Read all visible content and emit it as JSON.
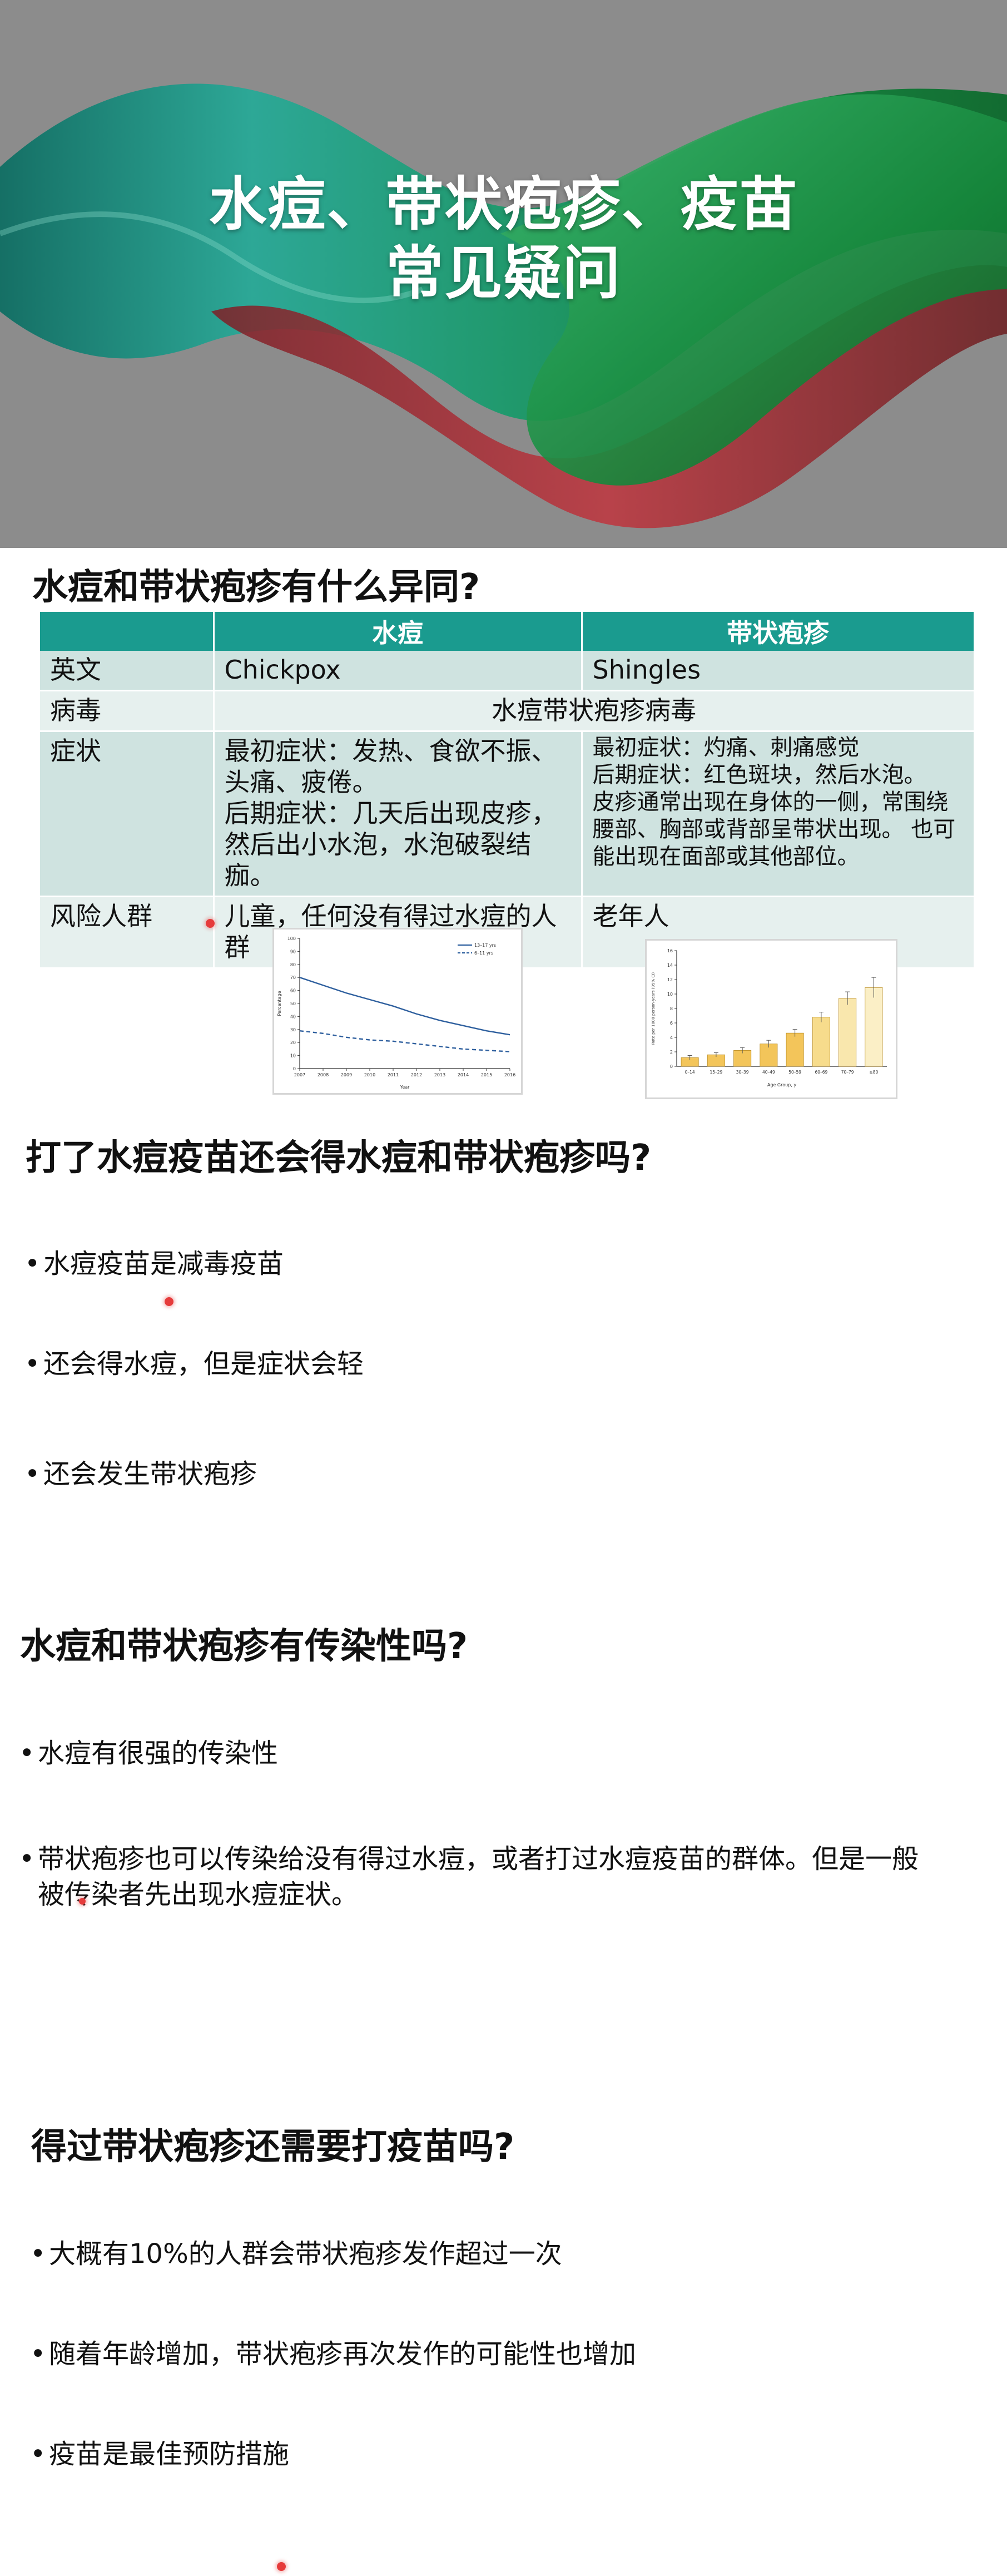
{
  "banner": {
    "title_line1": "水痘、带状疱疹、疫苗",
    "title_line2": "常见疑问"
  },
  "section1": {
    "heading": "水痘和带状疱疹有什么异同?",
    "table": {
      "headers": [
        "",
        "水痘",
        "带状疱疹"
      ],
      "rows": [
        {
          "label": "英文",
          "chickenpox": "Chickpox",
          "shingles": "Shingles"
        },
        {
          "label": "病毒",
          "merged": "水痘带状疱疹病毒"
        },
        {
          "label": "症状",
          "chickenpox": "最初症状：发热、食欲不振、\n头痛、疲倦。\n后期症状：几天后出现皮疹，\n然后出小水泡，水泡破裂结痂。",
          "shingles": "最初症状：灼痛、刺痛感觉\n后期症状：红色斑块，然后水泡。\n皮疹通常出现在身体的一侧，常围绕\n腰部、胸部或背部呈带状出现。 也可\n能出现在面部或其他部位。"
        },
        {
          "label": "风险人群",
          "chickenpox": "儿童，任何没有得过水痘的人\n群",
          "shingles": "老年人"
        }
      ]
    }
  },
  "section2": {
    "heading": "打了水痘疫苗还会得水痘和带状疱疹吗?",
    "bullets": [
      "水痘疫苗是减毒疫苗",
      "还会得水痘，但是症状会轻",
      "还会发生带状疱疹"
    ]
  },
  "section3": {
    "heading": "水痘和带状疱疹有传染性吗?",
    "bullets": [
      "水痘有很强的传染性",
      "带状疱疹也可以传染给没有得过水痘，或者打过水痘疫苗的群体。但是一般\n被传染者先出现水痘症状。"
    ]
  },
  "section4": {
    "heading": "得过带状疱疹还需要打疫苗吗?",
    "bullets": [
      "大概有10%的人群会带状疱疹发作超过一次",
      "随着年龄增加，带状疱疹再次发作的可能性也增加",
      "疫苗是最佳预防措施"
    ]
  },
  "bullet_glyph": "•",
  "colors": {
    "table_header": "#1a9b8f",
    "row_dark": "#cfe3e0",
    "row_light": "#e6f0ee",
    "banner_bg": "#8c8c8c"
  },
  "chart_data": [
    {
      "type": "line",
      "x": [
        2007,
        2008,
        2009,
        2010,
        2011,
        2012,
        2013,
        2014,
        2015,
        2016
      ],
      "series": [
        {
          "name": "13–17 yrs",
          "values": [
            70,
            64,
            58,
            53,
            48,
            42,
            37,
            33,
            29,
            26
          ],
          "style": "solid"
        },
        {
          "name": "6–11 yrs",
          "values": [
            29,
            27,
            24,
            22,
            21,
            19,
            17,
            15,
            14,
            13
          ],
          "style": "dashed"
        }
      ],
      "ylim": [
        0,
        100
      ],
      "yticks": [
        0,
        10,
        20,
        30,
        40,
        50,
        60,
        70,
        80,
        90,
        100
      ],
      "xlabel": "Year",
      "ylabel": "Percentage",
      "legend": "top-right",
      "color": "#2e5f9e"
    },
    {
      "type": "bar",
      "categories": [
        "0–14",
        "15–29",
        "30–39",
        "40–49",
        "50–59",
        "60–69",
        "70–79",
        "≥80"
      ],
      "values": [
        1.2,
        1.6,
        2.2,
        3.1,
        4.6,
        6.8,
        9.4,
        10.9
      ],
      "errors": [
        0.3,
        0.3,
        0.4,
        0.5,
        0.5,
        0.7,
        0.9,
        1.4
      ],
      "ylim": [
        0,
        16
      ],
      "yticks": [
        0,
        2,
        4,
        6,
        8,
        10,
        12,
        14,
        16
      ],
      "xlabel": "Age Group, y",
      "ylabel": "Rate per 1000 person-years (95% CI)",
      "colors": [
        "#f3c55a",
        "#f3c55a",
        "#f3c55a",
        "#f3c55a",
        "#f3c55a",
        "#f7dc8c",
        "#f9e7ad",
        "#fbefc6"
      ]
    }
  ]
}
